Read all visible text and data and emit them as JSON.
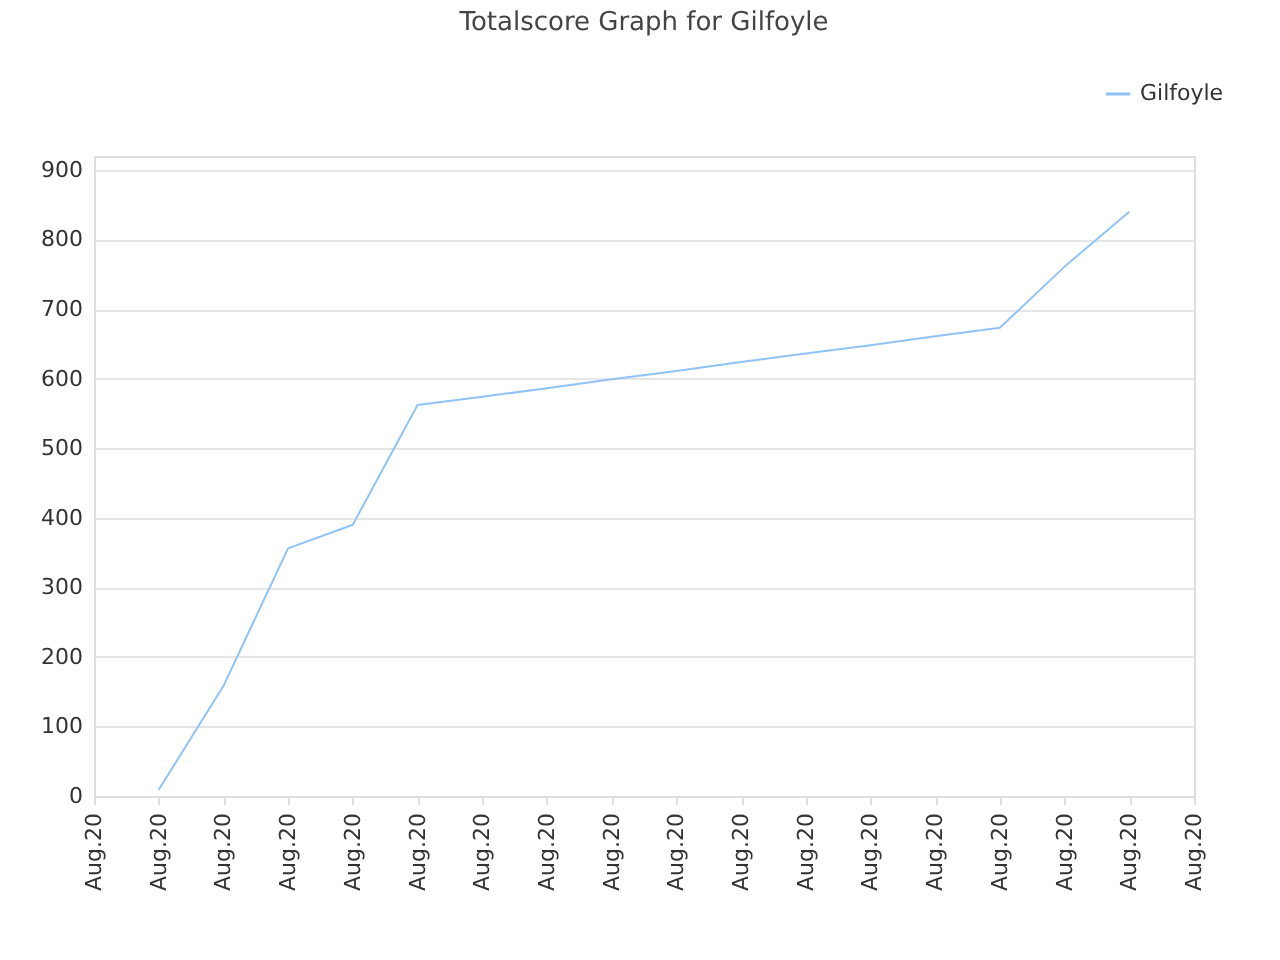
{
  "chart_data": {
    "type": "line",
    "title": "Totalscore Graph for Gilfoyle",
    "legend": "top right",
    "grid": "y",
    "marker": "none",
    "line_style": "solid",
    "categories": [
      "Aug.20",
      "Aug.20",
      "Aug.20",
      "Aug.20",
      "Aug.20",
      "Aug.20",
      "Aug.20",
      "Aug.20",
      "Aug.20",
      "Aug.20",
      "Aug.20",
      "Aug.20",
      "Aug.20",
      "Aug.20",
      "Aug.20",
      "Aug.20",
      "Aug.20",
      "Aug.20"
    ],
    "ylim": [
      0,
      920
    ],
    "yticks": [
      0,
      100,
      200,
      300,
      400,
      500,
      600,
      700,
      800,
      900
    ],
    "series": [
      {
        "name": "Gilfoyle",
        "color": "#90c3f5",
        "values": [
          null,
          9,
          158,
          356,
          390,
          562,
          574,
          586,
          599,
          611,
          624,
          636,
          648,
          661,
          673,
          761,
          840,
          null
        ]
      }
    ]
  }
}
